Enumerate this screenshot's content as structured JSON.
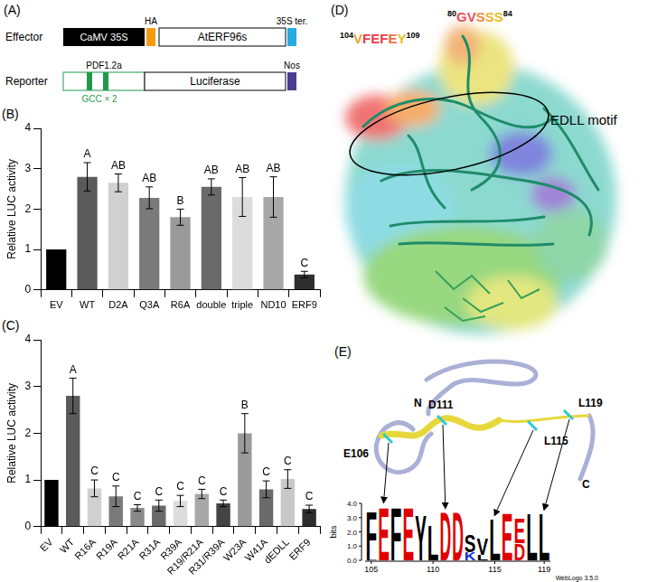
{
  "panels": {
    "A": {
      "label": "(A)",
      "effector": {
        "name": "Effector",
        "promoter": "CaMV 35S",
        "tag": "HA",
        "gene": "AtERF96s",
        "terminator": "35S ter."
      },
      "reporter": {
        "name": "Reporter",
        "promoter": "PDF1.2a",
        "element": "GCC × 2",
        "gene": "Luciferase",
        "terminator": "Nos"
      }
    },
    "D": {
      "label": "(D)",
      "sites": [
        {
          "start": "80",
          "seq": "GVSSS",
          "end": "84"
        },
        {
          "start": "104",
          "seq": "VFEFEY",
          "end": "109"
        }
      ],
      "motif": "EDLL motif"
    },
    "E": {
      "label": "(E)",
      "residues": [
        "E106",
        "D111",
        "L115",
        "L119"
      ],
      "termini": [
        "N",
        "C"
      ],
      "logo": {
        "y_label": "bits",
        "credit": "WebLogo 3.5.0",
        "xlim": [
          104.5,
          119.5
        ],
        "xticks": [
          105,
          110,
          115,
          119
        ],
        "ylim": [
          0,
          4
        ],
        "yticks": [
          {
            "value": 0,
            "label": "0.0"
          },
          {
            "value": 1,
            "label": "1.0"
          },
          {
            "value": 2,
            "label": "2.0"
          },
          {
            "value": 3,
            "label": "3.0"
          },
          {
            "value": 4,
            "label": "4.0"
          }
        ],
        "x": [
          105,
          106,
          107,
          108,
          109,
          110,
          111,
          112,
          113,
          114,
          115,
          116,
          117,
          118,
          119
        ],
        "stacks": [
          [
            {
              "letter": "L",
              "bits": 0.25,
              "color": "#000000"
            },
            {
              "letter": "F",
              "bits": 3.3,
              "color": "#000000"
            }
          ],
          [
            {
              "letter": "E",
              "bits": 3.9,
              "color": "#e00000"
            }
          ],
          [
            {
              "letter": "F",
              "bits": 3.9,
              "color": "#000000"
            }
          ],
          [
            {
              "letter": "E",
              "bits": 3.9,
              "color": "#e00000"
            }
          ],
          [
            {
              "letter": "Y",
              "bits": 3.3,
              "color": "#000000"
            }
          ],
          [
            {
              "letter": "L",
              "bits": 2.6,
              "color": "#000000"
            }
          ],
          [
            {
              "letter": "D",
              "bits": 3.5,
              "color": "#e00000"
            }
          ],
          [
            {
              "letter": "D",
              "bits": 3.5,
              "color": "#e00000"
            }
          ],
          [
            {
              "letter": "K",
              "bits": 0.6,
              "color": "#1030d0"
            },
            {
              "letter": "S",
              "bits": 1.3,
              "color": "#000000"
            }
          ],
          [
            {
              "letter": "L",
              "bits": 0.4,
              "color": "#000000"
            },
            {
              "letter": "V",
              "bits": 1.2,
              "color": "#000000"
            }
          ],
          [
            {
              "letter": "L",
              "bits": 3.0,
              "color": "#000000"
            }
          ],
          [
            {
              "letter": "E",
              "bits": 3.4,
              "color": "#e00000"
            }
          ],
          [
            {
              "letter": "D",
              "bits": 1.2,
              "color": "#e00000"
            },
            {
              "letter": "E",
              "bits": 1.8,
              "color": "#e00000"
            }
          ],
          [
            {
              "letter": "L",
              "bits": 3.4,
              "color": "#000000"
            }
          ],
          [
            {
              "letter": "L",
              "bits": 3.4,
              "color": "#000000"
            }
          ]
        ]
      }
    }
  },
  "chart_data": [
    {
      "type": "bar",
      "title": "(B)",
      "y_label": "Relative LUC activity",
      "categories": [
        "EV",
        "WT",
        "D2A",
        "Q3A",
        "R6A",
        "double",
        "triple",
        "ND10",
        "ERF9"
      ],
      "values": [
        1.0,
        2.8,
        2.65,
        2.28,
        1.8,
        2.55,
        2.3,
        2.3,
        0.38
      ],
      "errors": [
        null,
        0.35,
        0.22,
        0.27,
        0.2,
        0.2,
        0.48,
        0.5,
        0.08
      ],
      "letters": [
        null,
        "A",
        "AB",
        "AB",
        "B",
        "AB",
        "AB",
        "AB",
        "C"
      ],
      "colors": [
        "#000000",
        "#5a5a5a",
        "#d0d0d0",
        "#7a7a7a",
        "#9a9a9a",
        "#6a6a6a",
        "#dcdcdc",
        "#a8a8a8",
        "#2e2e2e"
      ],
      "ylim": [
        0,
        4
      ],
      "yticks": [
        0,
        1,
        2,
        3,
        4
      ],
      "grid": false
    },
    {
      "type": "bar",
      "title": "(C)",
      "y_label": "Relative LUC activity",
      "categories": [
        "EV",
        "WT",
        "R16A",
        "R19A",
        "R21A",
        "R31A",
        "R39A",
        "R19/R21A",
        "R31/R39A",
        "W23A",
        "W41A",
        "dEDLL",
        "ERF9"
      ],
      "values": [
        1.0,
        2.8,
        0.82,
        0.65,
        0.4,
        0.45,
        0.55,
        0.7,
        0.5,
        2.0,
        0.8,
        1.02,
        0.38
      ],
      "errors": [
        null,
        0.38,
        0.18,
        0.22,
        0.07,
        0.12,
        0.12,
        0.1,
        0.07,
        0.42,
        0.18,
        0.2,
        0.08
      ],
      "letters": [
        null,
        "A",
        "C",
        "C",
        "C",
        "C",
        "C",
        "C",
        "C",
        "B",
        "C",
        "C",
        "C"
      ],
      "colors": [
        "#000000",
        "#5a5a5a",
        "#d0d0d0",
        "#7a7a7a",
        "#8a8a8a",
        "#6a6a6a",
        "#dcdcdc",
        "#a8a8a8",
        "#444444",
        "#9a9a9a",
        "#6a6a6a",
        "#c8c8c8",
        "#2e2e2e"
      ],
      "ylim": [
        0,
        4
      ],
      "yticks": [
        0,
        1,
        2,
        3,
        4
      ],
      "grid": false
    }
  ]
}
